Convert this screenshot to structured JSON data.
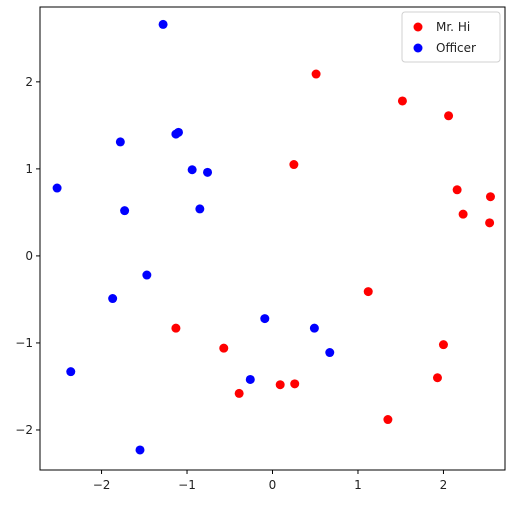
{
  "chart_data": {
    "type": "scatter",
    "xlim": [
      -2.72,
      2.72
    ],
    "ylim": [
      -2.46,
      2.86
    ],
    "x_ticks": [
      -2,
      -1,
      0,
      1,
      2
    ],
    "y_ticks": [
      -2,
      -1,
      0,
      1,
      2
    ],
    "grid": false,
    "legend_position": "top-right",
    "series": [
      {
        "name": "Mr. Hi",
        "color": "#ff0000",
        "points": [
          [
            0.51,
            2.09
          ],
          [
            1.52,
            1.78
          ],
          [
            2.06,
            1.61
          ],
          [
            0.25,
            1.05
          ],
          [
            2.16,
            0.76
          ],
          [
            2.55,
            0.68
          ],
          [
            2.23,
            0.48
          ],
          [
            2.54,
            0.38
          ],
          [
            1.12,
            -0.41
          ],
          [
            -1.13,
            -0.83
          ],
          [
            2.0,
            -1.02
          ],
          [
            -0.57,
            -1.06
          ],
          [
            1.93,
            -1.4
          ],
          [
            0.09,
            -1.48
          ],
          [
            0.26,
            -1.47
          ],
          [
            -0.39,
            -1.58
          ],
          [
            1.35,
            -1.88
          ]
        ]
      },
      {
        "name": "Officer",
        "color": "#0000ff",
        "points": [
          [
            -1.28,
            2.66
          ],
          [
            -1.13,
            1.4
          ],
          [
            -1.1,
            1.42
          ],
          [
            -1.78,
            1.31
          ],
          [
            -0.94,
            0.99
          ],
          [
            -0.76,
            0.96
          ],
          [
            -2.52,
            0.78
          ],
          [
            -1.73,
            0.52
          ],
          [
            -0.85,
            0.54
          ],
          [
            -1.47,
            -0.22
          ],
          [
            -1.87,
            -0.49
          ],
          [
            -0.09,
            -0.72
          ],
          [
            0.49,
            -0.83
          ],
          [
            0.67,
            -1.11
          ],
          [
            -2.36,
            -1.33
          ],
          [
            -0.26,
            -1.42
          ],
          [
            -1.55,
            -2.23
          ]
        ]
      }
    ]
  }
}
